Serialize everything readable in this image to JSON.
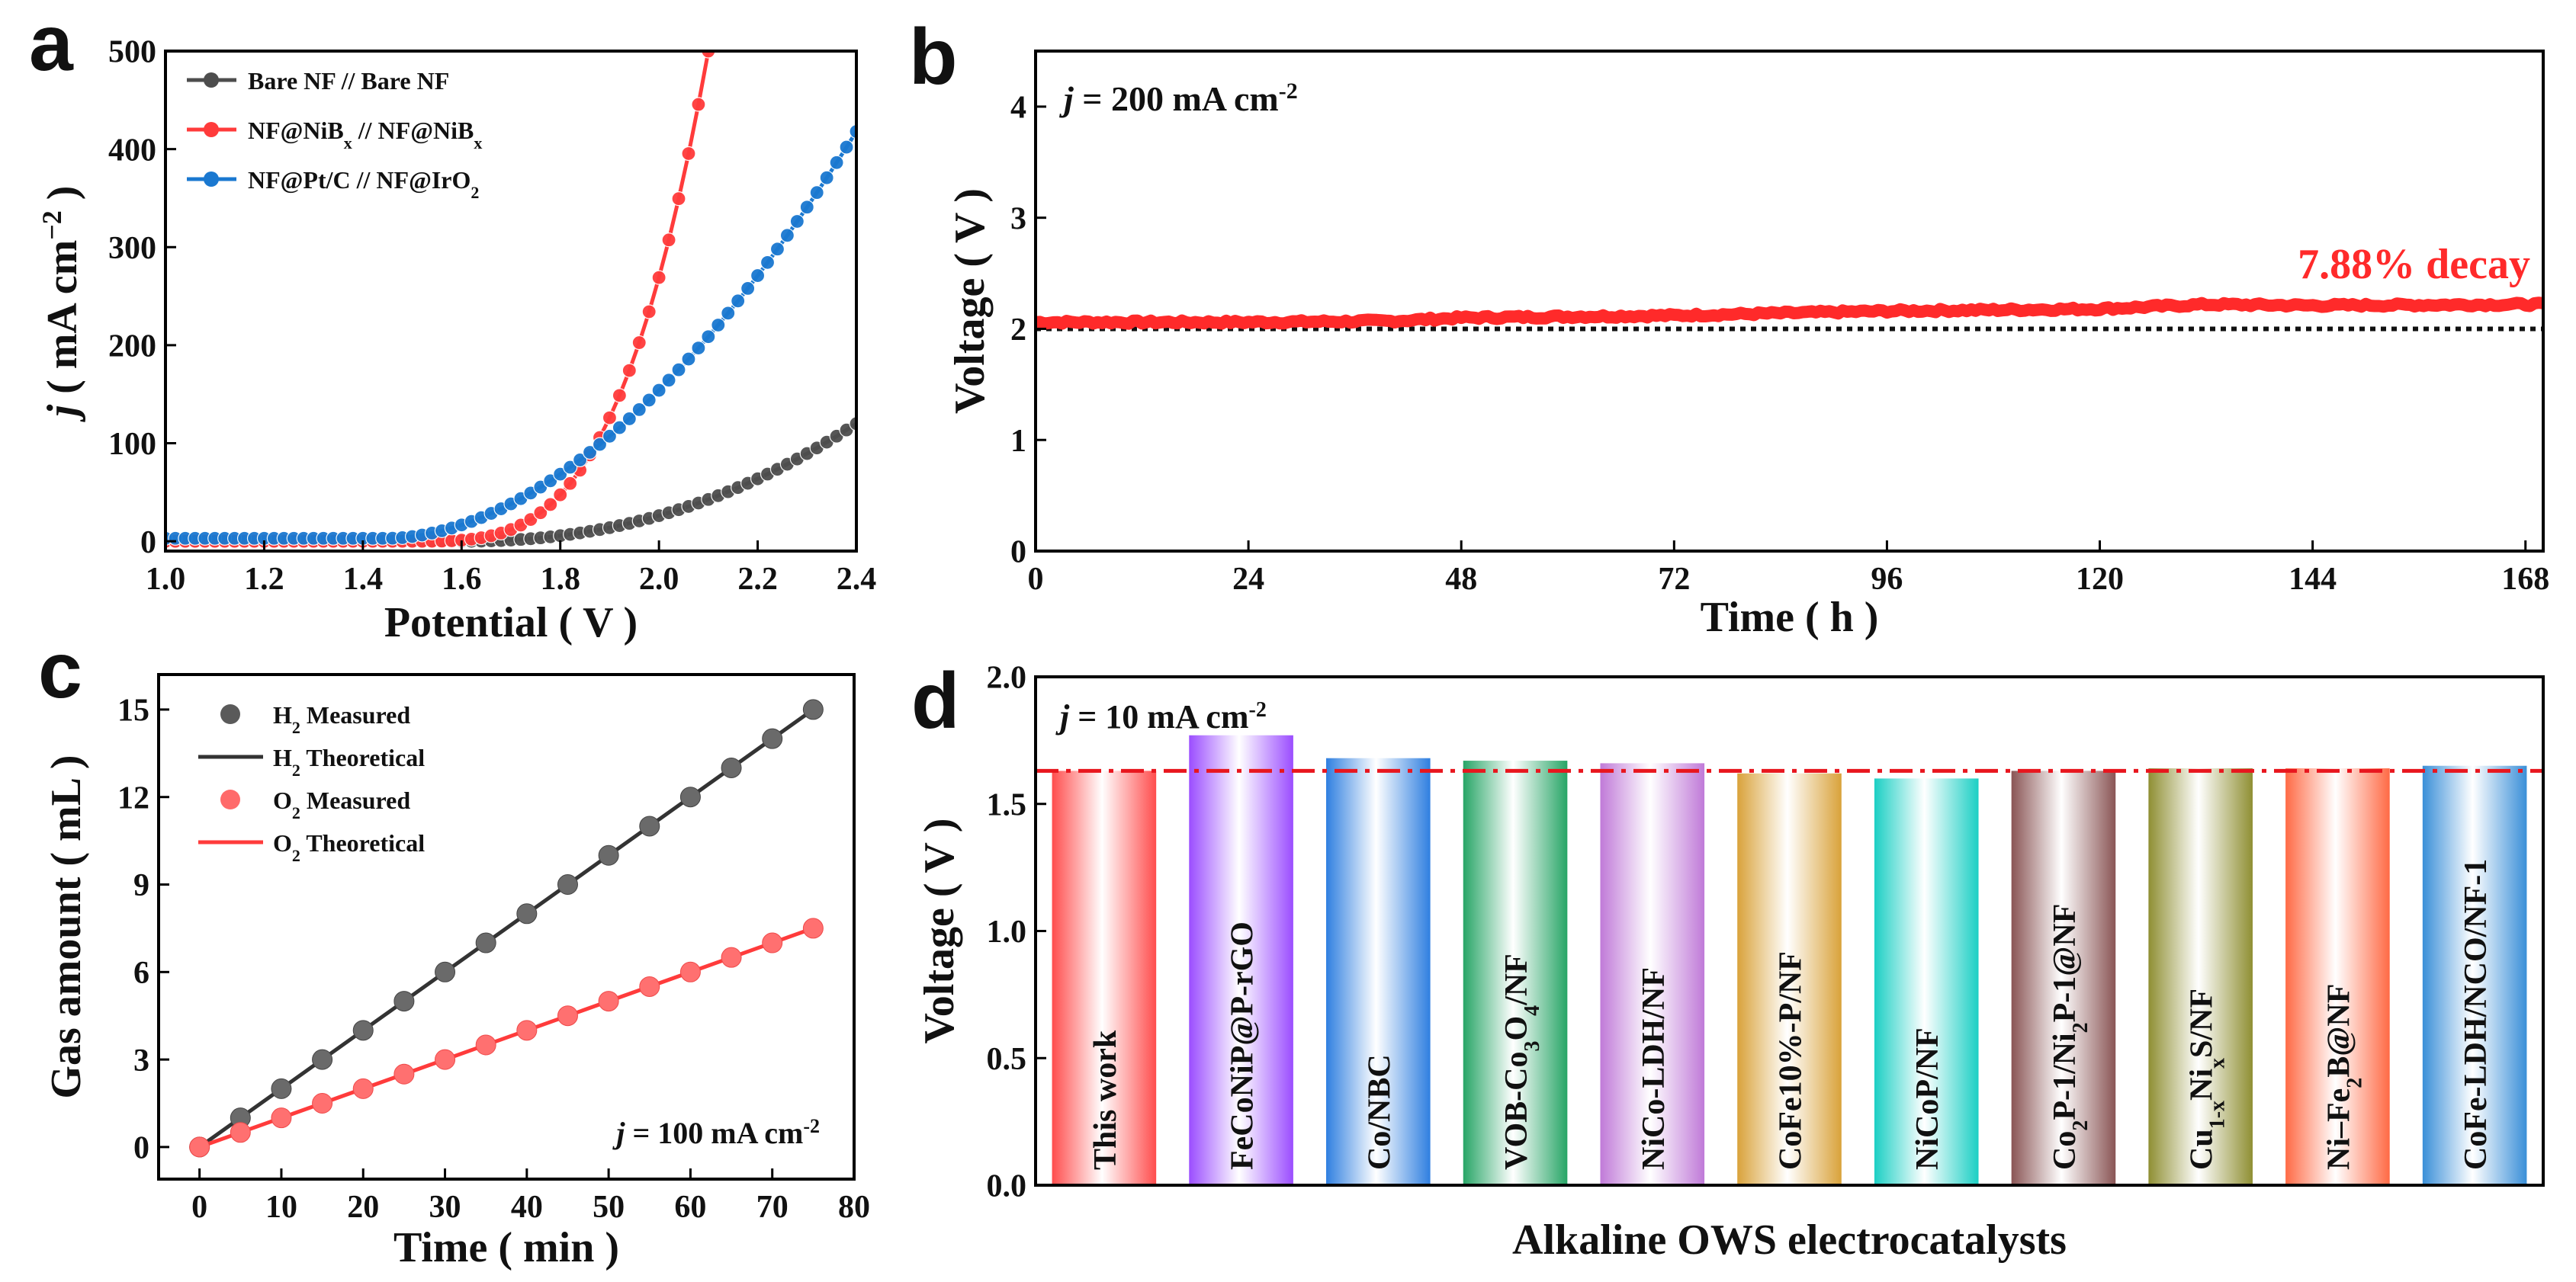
{
  "panel_labels": [
    "a",
    "b",
    "c",
    "d"
  ],
  "colors": {
    "black": "#111111",
    "bare": "#4d4d4d",
    "nib": "#ff3b3b",
    "ptc": "#1a78d0",
    "decay": "#ff2a2a",
    "h2_line": "#333333",
    "o2_line": "#ff3b3b",
    "ref_line": "#e8161e"
  },
  "chart_data": [
    {
      "panel": "a",
      "type": "line",
      "xlabel": "Potential ( V )",
      "ylabel_prefix": "j",
      "ylabel_rest": "( mA cm",
      "ylabel_sup": "−2",
      "ylabel_close": ")",
      "xlim": [
        1.0,
        2.4
      ],
      "ylim": [
        -10,
        500
      ],
      "xticks": [
        "1.0",
        "1.2",
        "1.4",
        "1.6",
        "1.8",
        "2.0",
        "2.2",
        "2.4"
      ],
      "yticks": [
        "0",
        "100",
        "200",
        "300",
        "400",
        "500"
      ],
      "series": [
        {
          "name": "Bare NF // Bare NF",
          "legend_parts": [
            "Bare NF // Bare NF"
          ],
          "color": "#4d4d4d",
          "onset": 1.6,
          "k": 0.0,
          "scale": 120,
          "end": 2.4,
          "exp": 2.2
        },
        {
          "name": "NF@NiBx // NF@NiBx",
          "legend_parts": [
            "NF@NiB",
            "x",
            " // NF@NiB",
            "x"
          ],
          "color": "#ff3b3b",
          "onset": 1.5,
          "scale": 500,
          "end": 2.1,
          "exp": 3.4
        },
        {
          "name": "NF@Pt/C // NF@IrO2",
          "legend_parts": [
            "NF@Pt/C // NF@IrO",
            "2"
          ],
          "color": "#1a78d0",
          "onset": 1.45,
          "scale": 415,
          "end": 2.4,
          "exp": 1.85
        }
      ]
    },
    {
      "panel": "b",
      "type": "line",
      "annotation_j": "j",
      "annotation_text": " = 200 mA cm",
      "annotation_sup": "-2",
      "decay_label": "7.88% decay",
      "xlabel": "Time ( h )",
      "ylabel": "Voltage ( V )",
      "xlim": [
        0,
        170
      ],
      "ylim": [
        0,
        4.5
      ],
      "xticks": [
        "0",
        "24",
        "48",
        "72",
        "96",
        "120",
        "144",
        "168"
      ],
      "yticks": [
        "0",
        "1",
        "2",
        "3",
        "4"
      ],
      "series": [
        {
          "name": "Voltage",
          "x": [
            0,
            24,
            40,
            48,
            72,
            96,
            120,
            132,
            144,
            168,
            170
          ],
          "y": [
            2.06,
            2.06,
            2.07,
            2.1,
            2.12,
            2.16,
            2.18,
            2.22,
            2.21,
            2.22,
            2.22
          ]
        }
      ],
      "reference_y": 2.0
    },
    {
      "panel": "c",
      "type": "scatter",
      "xlabel": "Time ( min )",
      "ylabel": "Gas amount ( mL )",
      "annotation_j": "j",
      "annotation_text": " = 100 mA cm",
      "annotation_sup": "-2",
      "xlim": [
        -5,
        80
      ],
      "ylim": [
        -1.1,
        16.2
      ],
      "xticks": [
        "0",
        "10",
        "20",
        "30",
        "40",
        "50",
        "60",
        "70",
        "80"
      ],
      "yticks": [
        "0",
        "3",
        "6",
        "9",
        "12",
        "15"
      ],
      "legend": [
        {
          "sym": "H",
          "sub": "2",
          "label": "Measured",
          "kind": "marker",
          "color": "#5a5a5a"
        },
        {
          "sym": "H",
          "sub": "2",
          "label": "Theoretical",
          "kind": "line",
          "color": "#333333"
        },
        {
          "sym": "O",
          "sub": "2",
          "label": "Measured",
          "kind": "marker",
          "color": "#ff6a6a"
        },
        {
          "sym": "O",
          "sub": "2",
          "label": "Theoretical",
          "kind": "line",
          "color": "#ff3b3b"
        }
      ],
      "series": [
        {
          "name": "H2 Measured",
          "x": [
            0,
            5,
            10,
            15,
            20,
            25,
            30,
            35,
            40,
            45,
            50,
            55,
            60,
            65,
            70,
            75
          ],
          "y": [
            0,
            1,
            2,
            3,
            4,
            5,
            6,
            7,
            8,
            9,
            10,
            11,
            12,
            13,
            14,
            15
          ]
        },
        {
          "name": "O2 Measured",
          "x": [
            0,
            5,
            10,
            15,
            20,
            25,
            30,
            35,
            40,
            45,
            50,
            55,
            60,
            65,
            70,
            75
          ],
          "y": [
            0,
            0.5,
            1,
            1.5,
            2,
            2.5,
            3,
            3.5,
            4,
            4.5,
            5,
            5.5,
            6,
            6.5,
            7,
            7.5
          ]
        },
        {
          "name": "H2 Theoretical",
          "x": [
            0,
            75
          ],
          "y": [
            0,
            15
          ]
        },
        {
          "name": "O2 Theoretical",
          "x": [
            0,
            75
          ],
          "y": [
            0,
            7.5
          ]
        }
      ]
    },
    {
      "panel": "d",
      "type": "bar",
      "xlabel": "Alkaline OWS electrocatalysts",
      "ylabel": "Voltage ( V )",
      "annotation_j": "j",
      "annotation_text": " = 10 mA cm",
      "annotation_sup": "-2",
      "ylim": [
        0,
        2.0
      ],
      "yticks": [
        "0.0",
        "0.5",
        "1.0",
        "1.5",
        "2.0"
      ],
      "reference_y": 1.63,
      "categories": [
        "This work",
        "FeCoNiP@P-rGO",
        "Co/NBC",
        "VOB-Co3O4/NF",
        "NiCo-LDH/NF",
        "CoFe10%-P/NF",
        "NiCoP/NF",
        "Co2P-1/Ni2P-1@NF",
        "Cu1-xNixS/NF",
        "Ni–Fe2B@NF",
        "CoFe-LDH/NCO/NF-1"
      ],
      "category_parts": [
        [
          [
            "This work",
            ""
          ]
        ],
        [
          [
            "FeCoNiP@P-rGO",
            ""
          ]
        ],
        [
          [
            "Co/NBC",
            ""
          ]
        ],
        [
          [
            "VOB-Co",
            ""
          ],
          [
            "3",
            "sub"
          ],
          [
            "O",
            ""
          ],
          [
            "4",
            "sub"
          ],
          [
            "/NF",
            ""
          ]
        ],
        [
          [
            "NiCo-LDH/NF",
            ""
          ]
        ],
        [
          [
            "CoFe10%-P/NF",
            ""
          ]
        ],
        [
          [
            "NiCoP/NF",
            ""
          ]
        ],
        [
          [
            "Co",
            ""
          ],
          [
            "2",
            "sub"
          ],
          [
            "P-1/Ni",
            ""
          ],
          [
            "2",
            "sub"
          ],
          [
            "P-1@NF",
            ""
          ]
        ],
        [
          [
            "Cu",
            ""
          ],
          [
            "1-x",
            "sub"
          ],
          [
            "Ni",
            ""
          ],
          [
            "x",
            "sub"
          ],
          [
            "S/NF",
            ""
          ]
        ],
        [
          [
            "Ni–Fe",
            ""
          ],
          [
            "2",
            "sub"
          ],
          [
            "B@NF",
            ""
          ]
        ],
        [
          [
            "CoFe-LDH/NCO/NF-1",
            ""
          ]
        ]
      ],
      "values": [
        1.63,
        1.77,
        1.68,
        1.67,
        1.66,
        1.62,
        1.6,
        1.63,
        1.64,
        1.64,
        1.65
      ],
      "bar_colors": [
        "#ff4d4d",
        "#9b4dff",
        "#2f7fe0",
        "#27a566",
        "#c07ad8",
        "#d9a23a",
        "#1bcfc4",
        "#8a5555",
        "#8f8f33",
        "#ff6a45",
        "#3a8fd8"
      ]
    }
  ]
}
